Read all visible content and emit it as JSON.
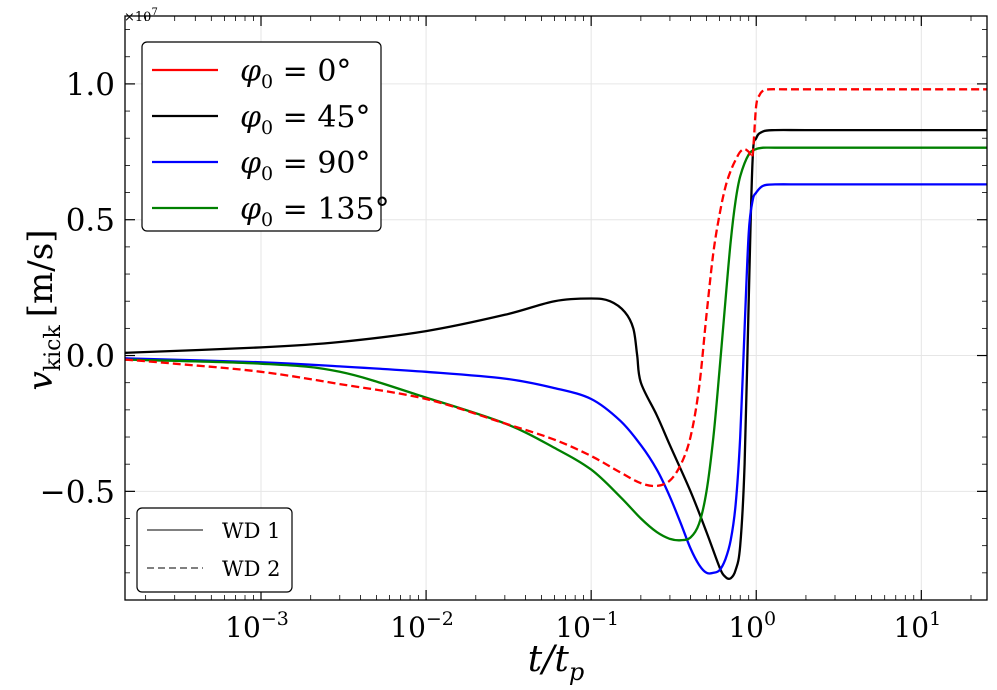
{
  "chart_data": {
    "type": "line",
    "title": "",
    "xlabel": "t/t",
    "xlabel_sub": "p",
    "ylabel": "v",
    "ylabel_sub": "kick",
    "ylabel_unit": "[m/s]",
    "x_scale": "log",
    "xlim": [
      0.00015,
      25
    ],
    "ylim": [
      -0.9,
      1.25
    ],
    "y_multiplier_text": "×10",
    "y_multiplier_exp": "7",
    "x_ticks": [
      {
        "value": 0.001,
        "base": "10",
        "exp": "−3"
      },
      {
        "value": 0.01,
        "base": "10",
        "exp": "−2"
      },
      {
        "value": 0.1,
        "base": "10",
        "exp": "−1"
      },
      {
        "value": 1,
        "base": "10",
        "exp": "0"
      },
      {
        "value": 10,
        "base": "10",
        "exp": "1"
      }
    ],
    "y_ticks": [
      {
        "value": -0.5,
        "label": "−0.5"
      },
      {
        "value": 0.0,
        "label": "0.0"
      },
      {
        "value": 0.5,
        "label": "0.5"
      },
      {
        "value": 1.0,
        "label": "1.0"
      }
    ],
    "grid": true,
    "legend_position": "top-left",
    "style_legend_position": "bottom-left",
    "series": [
      {
        "name": "φ0 = 0°",
        "label_symbol": "φ",
        "label_sub": "0",
        "label_eq": " = 0°",
        "color": "#ff0000",
        "style": "dashed",
        "x": [
          0.00015,
          0.0003,
          0.001,
          0.003,
          0.01,
          0.03,
          0.06,
          0.1,
          0.15,
          0.2,
          0.25,
          0.3,
          0.35,
          0.4,
          0.45,
          0.5,
          0.55,
          0.6,
          0.65,
          0.7,
          0.75,
          0.8,
          0.85,
          0.9,
          0.95,
          1.0,
          1.05,
          1.1,
          1.2,
          1.5,
          2,
          5,
          25
        ],
        "values": [
          -0.015,
          -0.03,
          -0.06,
          -0.105,
          -0.16,
          -0.25,
          -0.31,
          -0.37,
          -0.43,
          -0.47,
          -0.48,
          -0.46,
          -0.4,
          -0.3,
          -0.12,
          0.15,
          0.38,
          0.52,
          0.62,
          0.68,
          0.72,
          0.75,
          0.76,
          0.75,
          0.74,
          0.92,
          0.96,
          0.975,
          0.98,
          0.98,
          0.98,
          0.98,
          0.98
        ]
      },
      {
        "name": "φ0 = 45°",
        "label_symbol": "φ",
        "label_sub": "0",
        "label_eq": " = 45°",
        "color": "#000000",
        "style": "solid",
        "x": [
          0.00015,
          0.001,
          0.003,
          0.01,
          0.03,
          0.06,
          0.1,
          0.13,
          0.16,
          0.18,
          0.19,
          0.2,
          0.25,
          0.3,
          0.4,
          0.5,
          0.6,
          0.65,
          0.7,
          0.75,
          0.8,
          0.85,
          0.9,
          0.95,
          1.0,
          1.1,
          1.3,
          2,
          5,
          25
        ],
        "values": [
          0.01,
          0.03,
          0.05,
          0.09,
          0.15,
          0.2,
          0.21,
          0.2,
          0.16,
          0.1,
          0.0,
          -0.1,
          -0.22,
          -0.33,
          -0.5,
          -0.65,
          -0.78,
          -0.815,
          -0.82,
          -0.79,
          -0.7,
          -0.4,
          0.2,
          0.72,
          0.8,
          0.825,
          0.83,
          0.83,
          0.83,
          0.83
        ]
      },
      {
        "name": "φ0 = 90°",
        "label_symbol": "φ",
        "label_sub": "0",
        "label_eq": " = 90°",
        "color": "#0000ff",
        "style": "solid",
        "x": [
          0.00015,
          0.001,
          0.003,
          0.01,
          0.03,
          0.06,
          0.1,
          0.15,
          0.2,
          0.25,
          0.3,
          0.35,
          0.4,
          0.45,
          0.5,
          0.55,
          0.6,
          0.65,
          0.7,
          0.75,
          0.8,
          0.85,
          0.9,
          0.95,
          1.0,
          1.1,
          1.3,
          2,
          5,
          25
        ],
        "values": [
          -0.01,
          -0.025,
          -0.04,
          -0.06,
          -0.085,
          -0.12,
          -0.16,
          -0.24,
          -0.33,
          -0.42,
          -0.52,
          -0.62,
          -0.71,
          -0.77,
          -0.8,
          -0.8,
          -0.79,
          -0.75,
          -0.68,
          -0.55,
          -0.3,
          0.1,
          0.45,
          0.57,
          0.6,
          0.625,
          0.63,
          0.63,
          0.63,
          0.63
        ]
      },
      {
        "name": "φ0 = 135°",
        "label_symbol": "φ",
        "label_sub": "0",
        "label_eq": " = 135°",
        "color": "#008000",
        "style": "solid",
        "x": [
          0.00015,
          0.001,
          0.003,
          0.01,
          0.03,
          0.06,
          0.1,
          0.15,
          0.2,
          0.25,
          0.3,
          0.35,
          0.4,
          0.45,
          0.5,
          0.55,
          0.6,
          0.65,
          0.7,
          0.75,
          0.8,
          0.9,
          1.0,
          1.1,
          1.3,
          2,
          5,
          25
        ],
        "values": [
          -0.015,
          -0.03,
          -0.06,
          -0.155,
          -0.25,
          -0.34,
          -0.42,
          -0.52,
          -0.6,
          -0.65,
          -0.675,
          -0.68,
          -0.67,
          -0.62,
          -0.5,
          -0.3,
          -0.05,
          0.2,
          0.42,
          0.57,
          0.66,
          0.74,
          0.76,
          0.765,
          0.765,
          0.765,
          0.765,
          0.765
        ]
      }
    ],
    "style_legend": [
      {
        "label": "WD 1",
        "color": "#808080",
        "style": "solid"
      },
      {
        "label": "WD 2",
        "color": "#808080",
        "style": "dashed"
      }
    ]
  }
}
